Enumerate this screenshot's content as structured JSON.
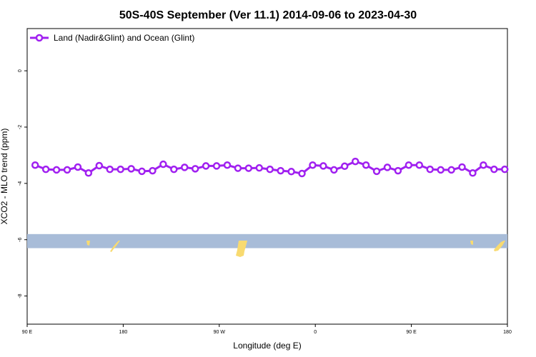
{
  "chart_data": {
    "type": "line",
    "title": "50S-40S September (Ver 11.1)   2014-09-06 to 2023-04-30",
    "xlabel": "Longitude (deg E)",
    "ylabel": "XCO2 - MLO trend (ppm)",
    "x_ticks": [
      {
        "value": 90,
        "label": "90 E"
      },
      {
        "value": 180,
        "label": "180"
      },
      {
        "value": 270,
        "label": "90 W"
      },
      {
        "value": 360,
        "label": "0"
      },
      {
        "value": 450,
        "label": "90 E"
      },
      {
        "value": 540,
        "label": "180"
      }
    ],
    "y_ticks": [
      {
        "value": 0,
        "label": "0"
      },
      {
        "value": -2,
        "label": "-2"
      },
      {
        "value": -4,
        "label": "-4"
      },
      {
        "value": -6,
        "label": "-6"
      },
      {
        "value": -8,
        "label": "-8"
      }
    ],
    "xlim": [
      90,
      540
    ],
    "ylim": [
      -9.0,
      1.5
    ],
    "legend_position": "top-left",
    "series": [
      {
        "name": "Land (Nadir&Glint) and Ocean (Glint)",
        "color": "#a020f0",
        "x": [
          97.5,
          107.5,
          117.5,
          127.5,
          137.5,
          147.5,
          157.5,
          167.5,
          177.5,
          187.5,
          197.5,
          207.5,
          217.5,
          227.5,
          237.5,
          247.5,
          257.5,
          267.5,
          277.5,
          287.5,
          297.5,
          307.5,
          317.5,
          327.5,
          337.5,
          347.5,
          357.5,
          367.5,
          377.5,
          387.5,
          397.5,
          407.5,
          417.5,
          427.5,
          437.5,
          447.5,
          457.5,
          467.5,
          477.5,
          487.5,
          497.5,
          507.5,
          517.5,
          527.5,
          537.5
        ],
        "y": [
          -3.35,
          -3.5,
          -3.52,
          -3.52,
          -3.42,
          -3.63,
          -3.37,
          -3.5,
          -3.5,
          -3.48,
          -3.57,
          -3.55,
          -3.32,
          -3.5,
          -3.43,
          -3.48,
          -3.38,
          -3.38,
          -3.35,
          -3.46,
          -3.46,
          -3.45,
          -3.5,
          -3.55,
          -3.58,
          -3.65,
          -3.35,
          -3.38,
          -3.52,
          -3.39,
          -3.22,
          -3.35,
          -3.57,
          -3.43,
          -3.55,
          -3.35,
          -3.35,
          -3.5,
          -3.52,
          -3.52,
          -3.42,
          -3.63,
          -3.35,
          -3.5,
          -3.5
        ]
      }
    ],
    "map_strip": {
      "y_range": [
        -5.8,
        -6.3
      ],
      "ocean_color": "#a8bcd8",
      "land_color": "#f8da70"
    }
  }
}
